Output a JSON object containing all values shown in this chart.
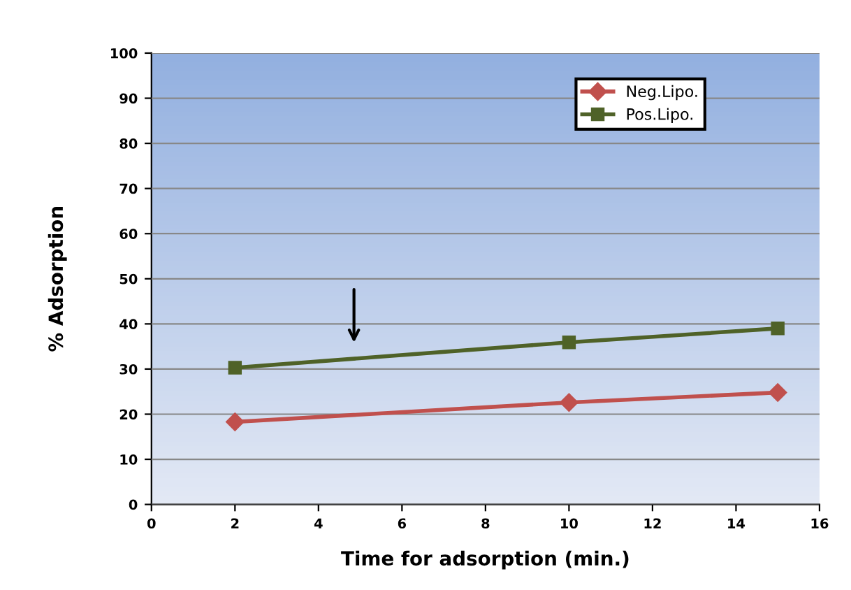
{
  "chart_data": {
    "type": "line",
    "xlabel": "Time for adsorption (min.)",
    "ylabel": "% Adsorption",
    "x": [
      2,
      10,
      15
    ],
    "series": [
      {
        "name": "Neg.Lipo.",
        "color": "#c0504d",
        "values": [
          18.3,
          22.6,
          24.8
        ],
        "marker": "diamond"
      },
      {
        "name": "Pos.Lipo.",
        "color": "#4f6228",
        "values": [
          30.3,
          35.9,
          39
        ],
        "marker": "square"
      }
    ],
    "xlim": [
      0,
      16
    ],
    "xticks": [
      0,
      2,
      4,
      6,
      8,
      10,
      12,
      14,
      16
    ],
    "ylim": [
      0,
      100
    ],
    "yticks": [
      0,
      10,
      20,
      30,
      40,
      50,
      60,
      70,
      80,
      90,
      100
    ],
    "grid": "y",
    "legend": "top right"
  }
}
